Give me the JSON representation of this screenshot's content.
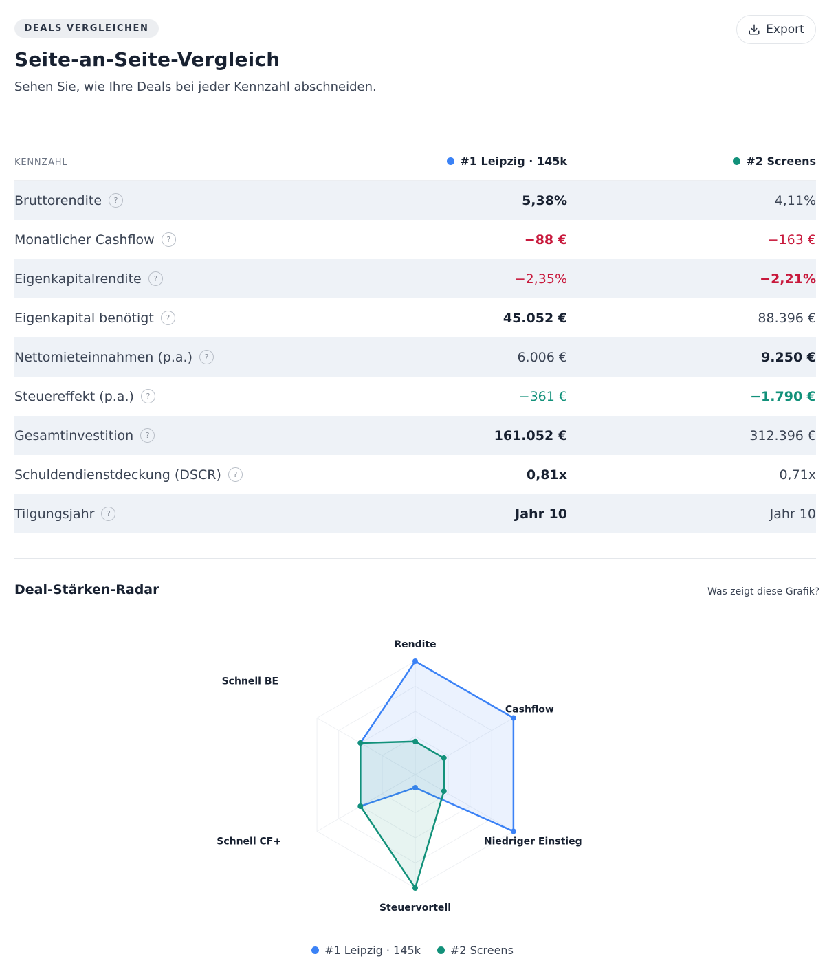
{
  "header": {
    "badge": "DEALS VERGLEICHEN",
    "title": "Seite-an-Seite-Vergleich",
    "subtitle": "Sehen Sie, wie Ihre Deals bei jeder Kennzahl abschneiden.",
    "export_label": "Export"
  },
  "table": {
    "metric_header": "KENNZAHL",
    "deal_a": "#1 Leipzig · 145k",
    "deal_b": "#2 Screens",
    "help_glyph": "?",
    "rows": [
      {
        "name": "Bruttorendite",
        "a": "5,38%",
        "b": "4,11%"
      },
      {
        "name": "Monatlicher Cashflow",
        "a": "−88 €",
        "b": "−163 €"
      },
      {
        "name": "Eigenkapitalrendite",
        "a": "−2,35%",
        "b": "−2,21%"
      },
      {
        "name": "Eigenkapital benötigt",
        "a": "45.052 €",
        "b": "88.396 €"
      },
      {
        "name": "Nettomieteinnahmen (p.a.)",
        "a": "6.006 €",
        "b": "9.250 €"
      },
      {
        "name": "Steuereffekt (p.a.)",
        "a": "−361 €",
        "b": "−1.790 €"
      },
      {
        "name": "Gesamtinvestition",
        "a": "161.052 €",
        "b": "312.396 €"
      },
      {
        "name": "Schuldendienstdeckung (DSCR)",
        "a": "0,81x",
        "b": "0,71x"
      },
      {
        "name": "Tilgungsjahr",
        "a": "Jahr 10",
        "b": "Jahr 10"
      }
    ]
  },
  "radar": {
    "title": "Deal-Stärken-Radar",
    "help_link": "Was zeigt diese Grafik?"
  },
  "chart_data": {
    "type": "radar",
    "axes": [
      "Rendite",
      "Cashflow",
      "Niedriger Einstieg",
      "Steuervorteil",
      "Schnell CF+",
      "Schnell BE"
    ],
    "max": 100,
    "series": [
      {
        "name": "#1 Leipzig · 145k",
        "color": "#3b82f6",
        "values": [
          100,
          100,
          100,
          0,
          50,
          50
        ]
      },
      {
        "name": "#2 Screens",
        "color": "#12917a",
        "values": [
          20,
          20,
          20,
          100,
          50,
          50
        ]
      }
    ]
  }
}
